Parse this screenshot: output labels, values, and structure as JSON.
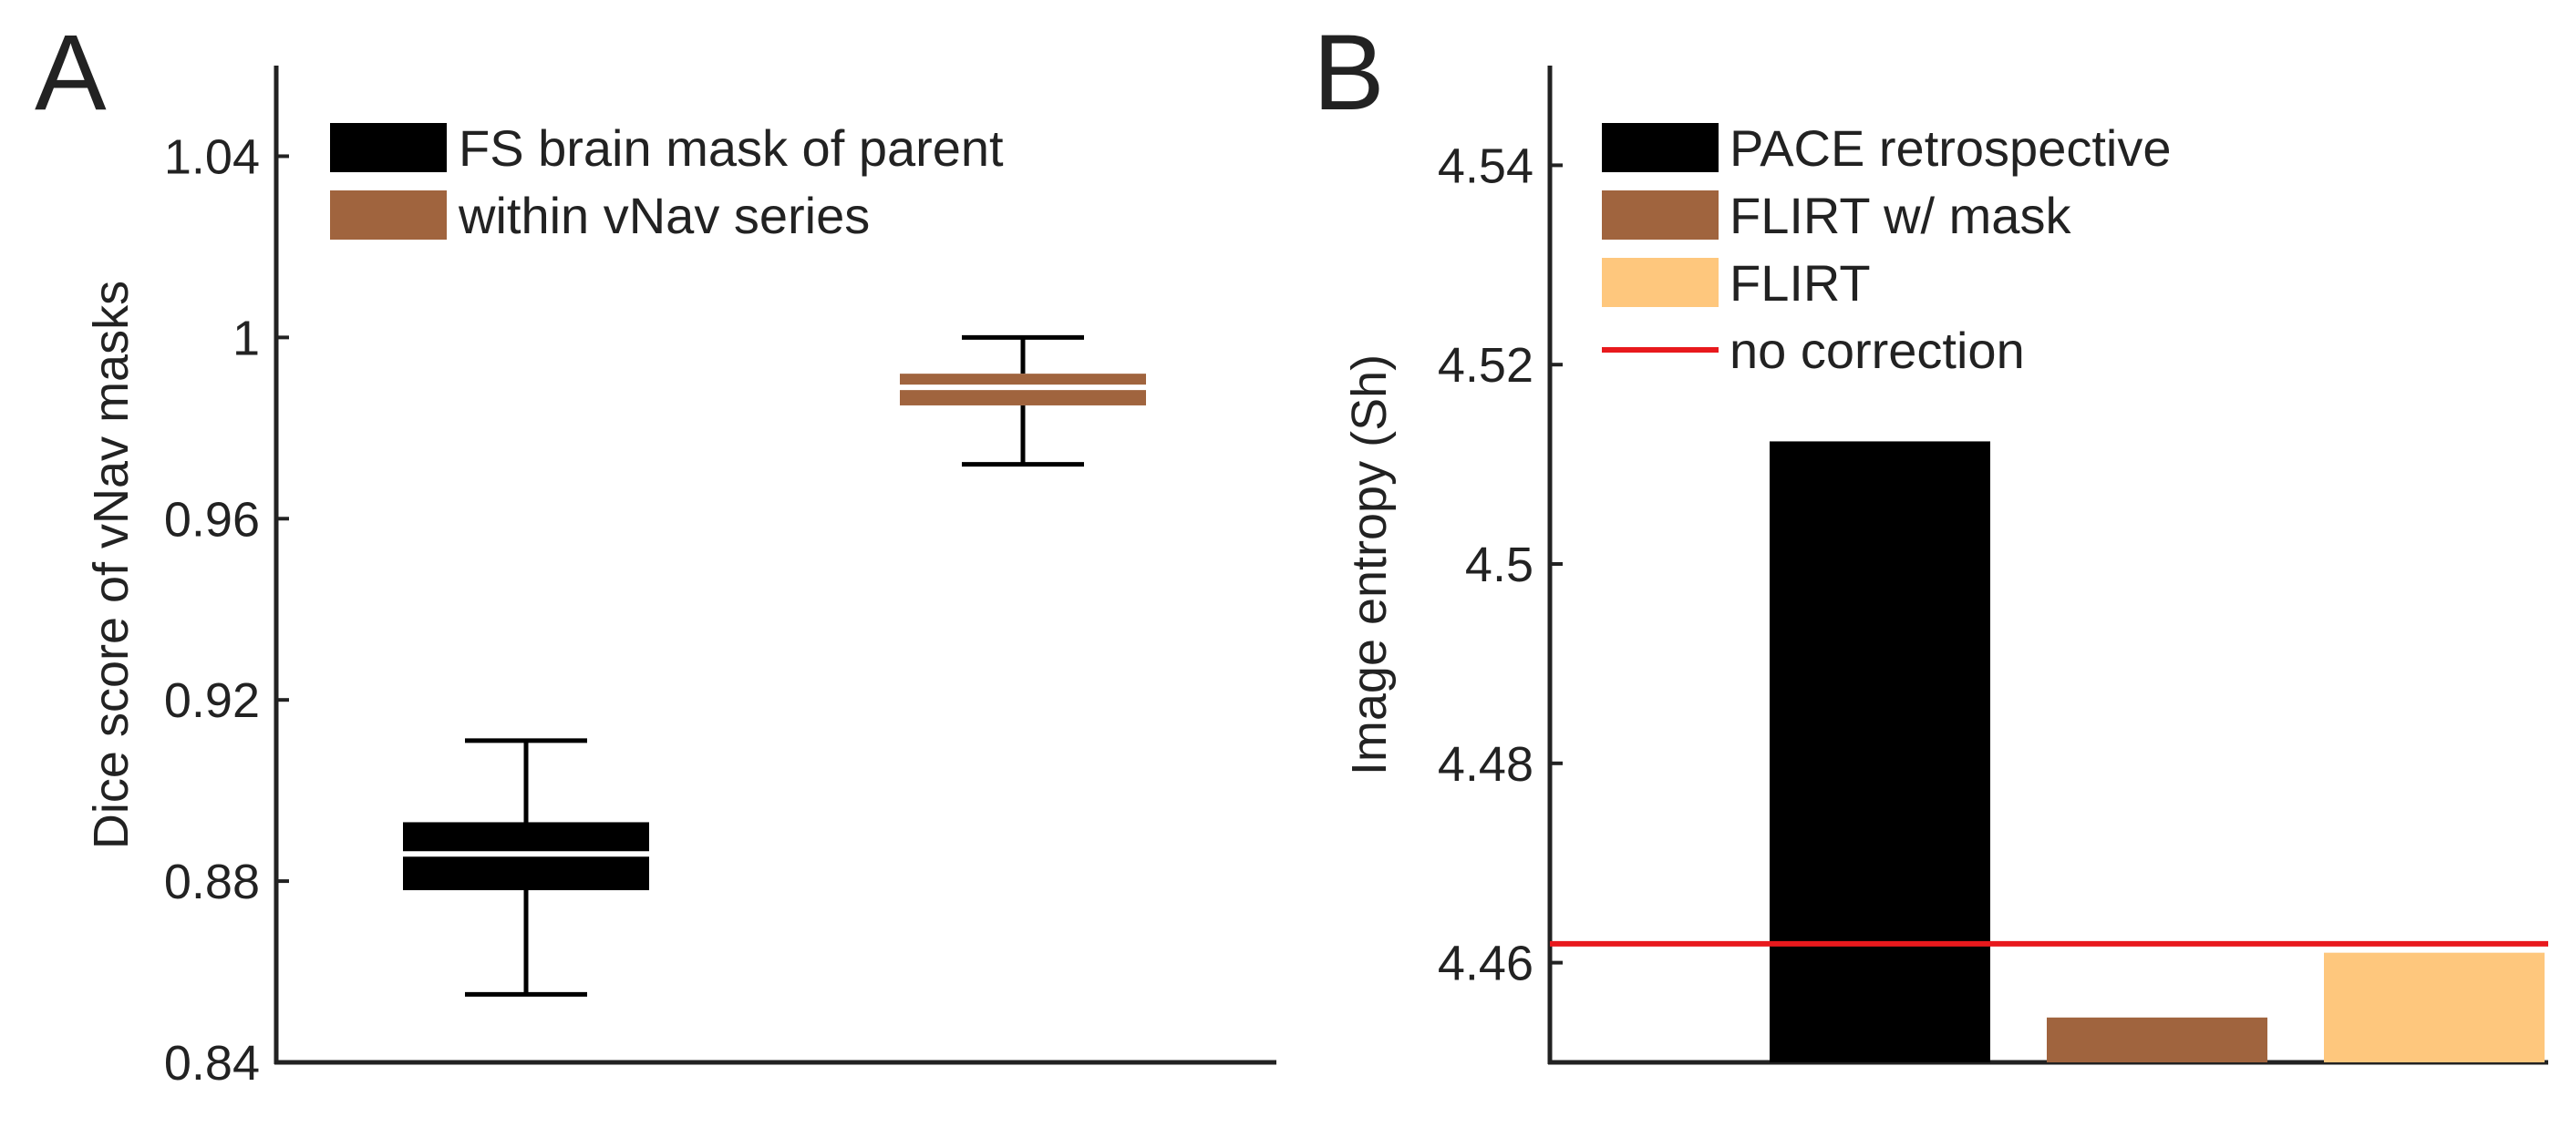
{
  "chart_data": [
    {
      "panel": "A",
      "type": "box",
      "ylabel": "Dice score of vNav masks",
      "ylim": [
        0.84,
        1.06
      ],
      "yticks": [
        "0.84",
        "0.88",
        "0.92",
        "0.96",
        "1",
        "1.04"
      ],
      "yticks_values": [
        0.84,
        0.88,
        0.92,
        0.96,
        1.0,
        1.04
      ],
      "grid": false,
      "legend_position": "top-left",
      "series": [
        {
          "name": "FS brain mask of parent",
          "color": "#000000",
          "whisker_low": 0.855,
          "q1": 0.878,
          "median": 0.886,
          "q3": 0.893,
          "whisker_high": 0.911
        },
        {
          "name": "within vNav series",
          "color": "#a0643e",
          "whisker_low": 0.972,
          "q1": 0.985,
          "median": 0.989,
          "q3": 0.992,
          "whisker_high": 1.0
        }
      ]
    },
    {
      "panel": "B",
      "type": "bar",
      "ylabel": "Image entropy (Sh)",
      "ylim": [
        4.45,
        4.55
      ],
      "yticks": [
        "4.46",
        "4.48",
        "4.5",
        "4.52",
        "4.54"
      ],
      "yticks_values": [
        4.46,
        4.48,
        4.5,
        4.52,
        4.54
      ],
      "grid": false,
      "legend_position": "top-left",
      "series": [
        {
          "name": "PACE retrospective",
          "color": "#000000",
          "value": 4.5123
        },
        {
          "name": "FLIRT w/ mask",
          "color": "#a0643e",
          "value": 4.4545
        },
        {
          "name": "FLIRT",
          "color": "#fec77d",
          "value": 4.461
        }
      ],
      "reference_line": {
        "name": "no correction",
        "color": "#e8191d",
        "value": 4.4619
      }
    }
  ]
}
